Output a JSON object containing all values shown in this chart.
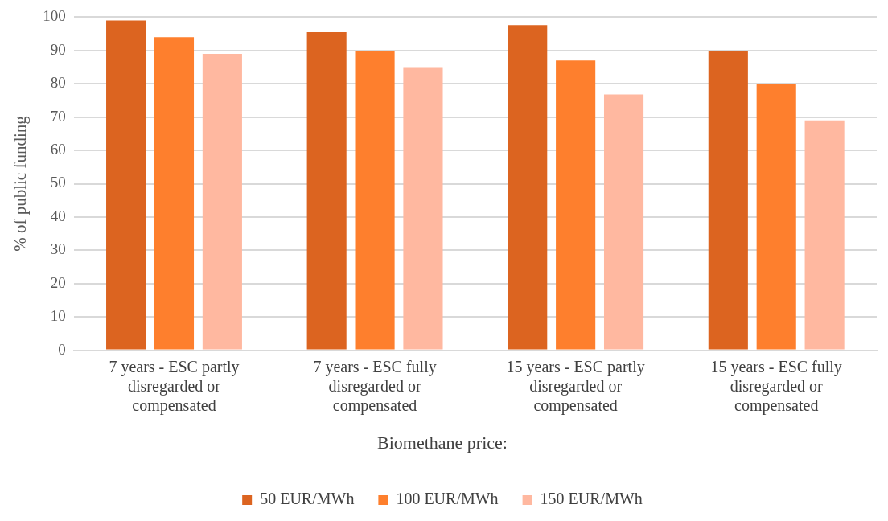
{
  "chart_data": {
    "type": "bar",
    "ylabel": "% of public funding",
    "legend_title": "Biomethane price:",
    "categories": [
      "7 years - ESC partly disregarded or compensated",
      "7 years - ESC fully disregarded or compensated",
      "15 years - ESC partly disregarded or compensated",
      "15 years - ESC fully disregarded or compensated"
    ],
    "series": [
      {
        "name": "50 EUR/MWh",
        "color": "#dc6420",
        "values": [
          99,
          95.5,
          97.6,
          89.8
        ]
      },
      {
        "name": "100 EUR/MWh",
        "color": "#fe7f2d",
        "values": [
          94,
          89.7,
          87,
          80
        ]
      },
      {
        "name": "150 EUR/MWh",
        "color": "#ffb8a0",
        "values": [
          89,
          85,
          76.8,
          69
        ]
      }
    ],
    "ylim": [
      0,
      100
    ],
    "yticks": [
      0,
      10,
      20,
      30,
      40,
      50,
      60,
      70,
      80,
      90,
      100
    ],
    "grid": "y",
    "legend": "bottom"
  }
}
